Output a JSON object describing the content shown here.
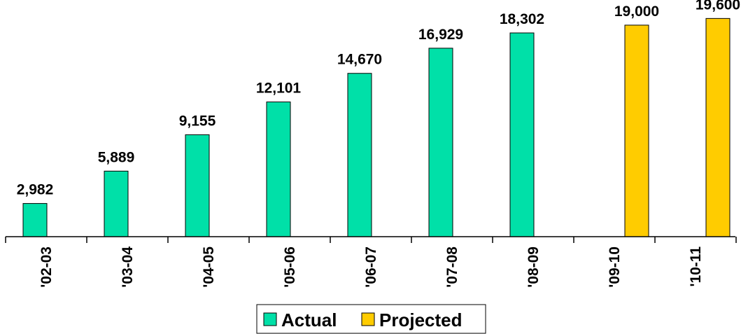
{
  "chart_data": {
    "type": "bar",
    "categories": [
      "'02-03",
      "'03-04",
      "'04-05",
      "'05-06",
      "'06-07",
      "'07-08",
      "'08-09",
      "'09-10",
      "'10-11"
    ],
    "series": [
      {
        "name": "Actual",
        "color": "#00E0A8",
        "values": [
          2982,
          5889,
          9155,
          12101,
          14670,
          16929,
          18302,
          null,
          null
        ]
      },
      {
        "name": "Projected",
        "color": "#FFCC00",
        "values": [
          null,
          null,
          null,
          null,
          null,
          null,
          null,
          19000,
          19600
        ]
      }
    ],
    "data_labels": [
      "2,982",
      "5,889",
      "9,155",
      "12,101",
      "14,670",
      "16,929",
      "18,302",
      "19,000",
      "19,600"
    ],
    "title": "",
    "xlabel": "",
    "ylabel": "",
    "ylim": [
      0,
      20000
    ],
    "grid": false,
    "legend_position": "bottom"
  }
}
